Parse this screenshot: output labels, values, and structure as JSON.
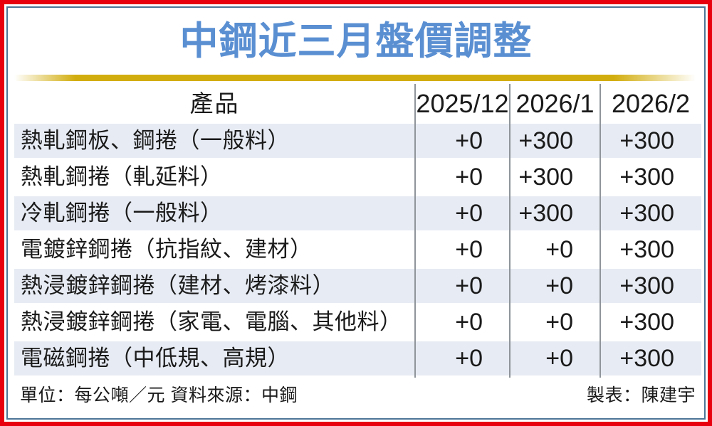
{
  "title": {
    "text": "中鋼近三月盤價調整"
  },
  "colors": {
    "title_blue": "#5a8fd2",
    "frame_red": "#e8000f",
    "inner_border_blue": "#4d7596",
    "divider_gold": "#d2ad0e",
    "row_alt_bg": "#e7ebf3",
    "grid_line_gray": "#8f959b"
  },
  "table": {
    "headers": [
      "產品",
      "2025/12",
      "2026/1",
      "2026/2"
    ],
    "rows": [
      {
        "product": "熱軋鋼板、鋼捲（一般料）",
        "values": [
          "+0",
          "+300",
          "+300"
        ]
      },
      {
        "product": "熱軋鋼捲（軋延料）",
        "values": [
          "+0",
          "+300",
          "+300"
        ]
      },
      {
        "product": "冷軋鋼捲（一般料）",
        "values": [
          "+0",
          "+300",
          "+300"
        ]
      },
      {
        "product": "電鍍鋅鋼捲（抗指紋、建材）",
        "values": [
          "+0",
          "+0",
          "+300"
        ]
      },
      {
        "product": "熱浸鍍鋅鋼捲（建材、烤漆料）",
        "values": [
          "+0",
          "+0",
          "+300"
        ]
      },
      {
        "product": "熱浸鍍鋅鋼捲（家電、電腦、其他料）",
        "values": [
          "+0",
          "+0",
          "+300"
        ]
      },
      {
        "product": "電磁鋼捲（中低規、高規）",
        "values": [
          "+0",
          "+0",
          "+300"
        ]
      }
    ]
  },
  "footer": {
    "left": "單位：每公噸／元 資料來源：中鋼",
    "right": "製表：陳建宇"
  },
  "chart_data": {
    "type": "table",
    "title": "中鋼近三月盤價調整",
    "columns": [
      "產品",
      "2025/12",
      "2026/1",
      "2026/2"
    ],
    "rows": [
      [
        "熱軋鋼板、鋼捲（一般料）",
        "+0",
        "+300",
        "+300"
      ],
      [
        "熱軋鋼捲（軋延料）",
        "+0",
        "+300",
        "+300"
      ],
      [
        "冷軋鋼捲（一般料）",
        "+0",
        "+300",
        "+300"
      ],
      [
        "電鍍鋅鋼捲（抗指紋、建材）",
        "+0",
        "+0",
        "+300"
      ],
      [
        "熱浸鍍鋅鋼捲（建材、烤漆料）",
        "+0",
        "+0",
        "+300"
      ],
      [
        "熱浸鍍鋅鋼捲（家電、電腦、其他料）",
        "+0",
        "+0",
        "+300"
      ],
      [
        "電磁鋼捲（中低規、高規）",
        "+0",
        "+0",
        "+300"
      ]
    ],
    "unit": "單位：每公噸／元",
    "source": "資料來源：中鋼",
    "credit": "製表：陳建宇"
  }
}
